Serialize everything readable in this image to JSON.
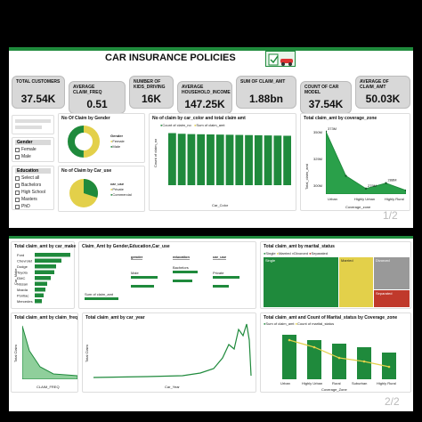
{
  "slide1": {
    "title": "CAR INSURANCE POLICIES",
    "pager": "1/2",
    "kpis": [
      {
        "label": "TOTAL CUSTOMERS",
        "value": "37.54K"
      },
      {
        "label": "AVERAGE CLAIM_FREQ",
        "value": "0.51"
      },
      {
        "label": "NUMBER OF KIDS_DRIVING",
        "value": "16K"
      },
      {
        "label": "AVERAGE HOUSEHOLD_INCOME",
        "value": "147.25K"
      },
      {
        "label": "SUM OF CLAIM_AMT",
        "value": "1.88bn"
      },
      {
        "label": "COUNT OF CAR MODEL",
        "value": "37.54K"
      },
      {
        "label": "AVERAGE OF CLAIM_AMT",
        "value": "50.03K"
      }
    ],
    "slicers": {
      "gender_title": "Gender",
      "gender_options": [
        "Female",
        "Male"
      ],
      "education_title": "Education",
      "education_options": [
        "Select all",
        "Bachelors",
        "High School",
        "Masters",
        "PhD"
      ]
    },
    "panels": {
      "claim_by_gender": "No Of Claim by Gender",
      "claim_by_car_use": "No of Claim by Car_use",
      "car_color": "No of claim by car_color and total claim amt",
      "coverage_zone": "Total claim_amt by coverage_zone"
    },
    "gender_legend": {
      "title": "Gender",
      "items": [
        "Female",
        "Male"
      ]
    },
    "car_use_legend": {
      "title": "car_use",
      "items": [
        "Private",
        "Commercial"
      ]
    },
    "car_color_legend": [
      "Count of claim_no",
      "Sum of claim_amt"
    ],
    "car_color_axis": {
      "x": "Car_Color",
      "y": "Count of claim_no"
    },
    "coverage_axis": {
      "x": "Coverage_zone",
      "y": "Total_claim_amt"
    },
    "coverage_ticks": [
      "300M",
      "325M",
      "350M"
    ],
    "coverage_labels": [
      "Urban",
      "Highly Urban",
      "Highly Rural"
    ],
    "coverage_value_labels": [
      "373M",
      "279M",
      "288M"
    ]
  },
  "slide2": {
    "pager": "2/2",
    "panels": {
      "by_car_make": "Total claim_amt by car_make",
      "by_gender_edu": "Claim_Amt by Gender,Education,Car_use",
      "by_marital": "Total claim_amt by marital_status",
      "by_claim_freq": "Total claim_amt by claim_freq",
      "by_car_year": "Total claim_amt by car_year",
      "by_coverage_marital": "Total claim_amt and Count of Marital_status by Coverage_zone"
    },
    "car_makes": [
      "Ford",
      "Chevrolet",
      "Dodge",
      "Toyota",
      "GMC",
      "Nissan",
      "Mazda",
      "Pontiac",
      "Mercedes"
    ],
    "car_make_axis": "Car_Make",
    "decomp_nodes": [
      "gender",
      "education",
      "car_use"
    ],
    "decomp_labels": [
      "Sum of claim_amt",
      "Male",
      "Bachelors",
      "Private"
    ],
    "marital_legend": [
      "Single",
      "Married",
      "Divorced",
      "Separated"
    ],
    "marital_labels": [
      "Single",
      "Married",
      "Divorced",
      "Separated"
    ],
    "claim_freq_axis": {
      "x": "CLAIM_FREQ",
      "y": "Total Claim"
    },
    "car_year_axis": {
      "x": "Car_Year",
      "y": "Total Claim"
    },
    "coverage_legend": [
      "Sum of claim_amt",
      "Count of marital_status"
    ],
    "coverage_axis_x": "Coverage_Zone",
    "coverage_categories": [
      "Urban",
      "Highly Urban",
      "Rural",
      "Suburban",
      "Highly Rural"
    ]
  },
  "chart_data": [
    {
      "type": "pie",
      "title": "No Of Claim by Gender",
      "categories": [
        "Female",
        "Male"
      ],
      "values": [
        50,
        50
      ]
    },
    {
      "type": "pie",
      "title": "No of Claim by Car_use",
      "categories": [
        "Private",
        "Commercial"
      ],
      "values": [
        65,
        35
      ]
    },
    {
      "type": "bar",
      "title": "No of claim by car_color and total claim amt",
      "series": [
        {
          "name": "Count of claim_no",
          "values": [
            3120,
            3080,
            3060,
            3050,
            3040,
            3030,
            3020,
            3010,
            3000,
            2990,
            2980,
            2970,
            2960
          ]
        }
      ],
      "ylim": [
        0,
        3200
      ]
    },
    {
      "type": "area",
      "title": "Total claim_amt by coverage_zone",
      "categories": [
        "Urban",
        "Highly Urban",
        "Rural",
        "Suburban",
        "Highly Rural"
      ],
      "values": [
        373,
        300,
        279,
        288,
        276
      ],
      "ylabel": "Total_claim_amt",
      "xlabel": "Coverage_zone"
    }
  ]
}
